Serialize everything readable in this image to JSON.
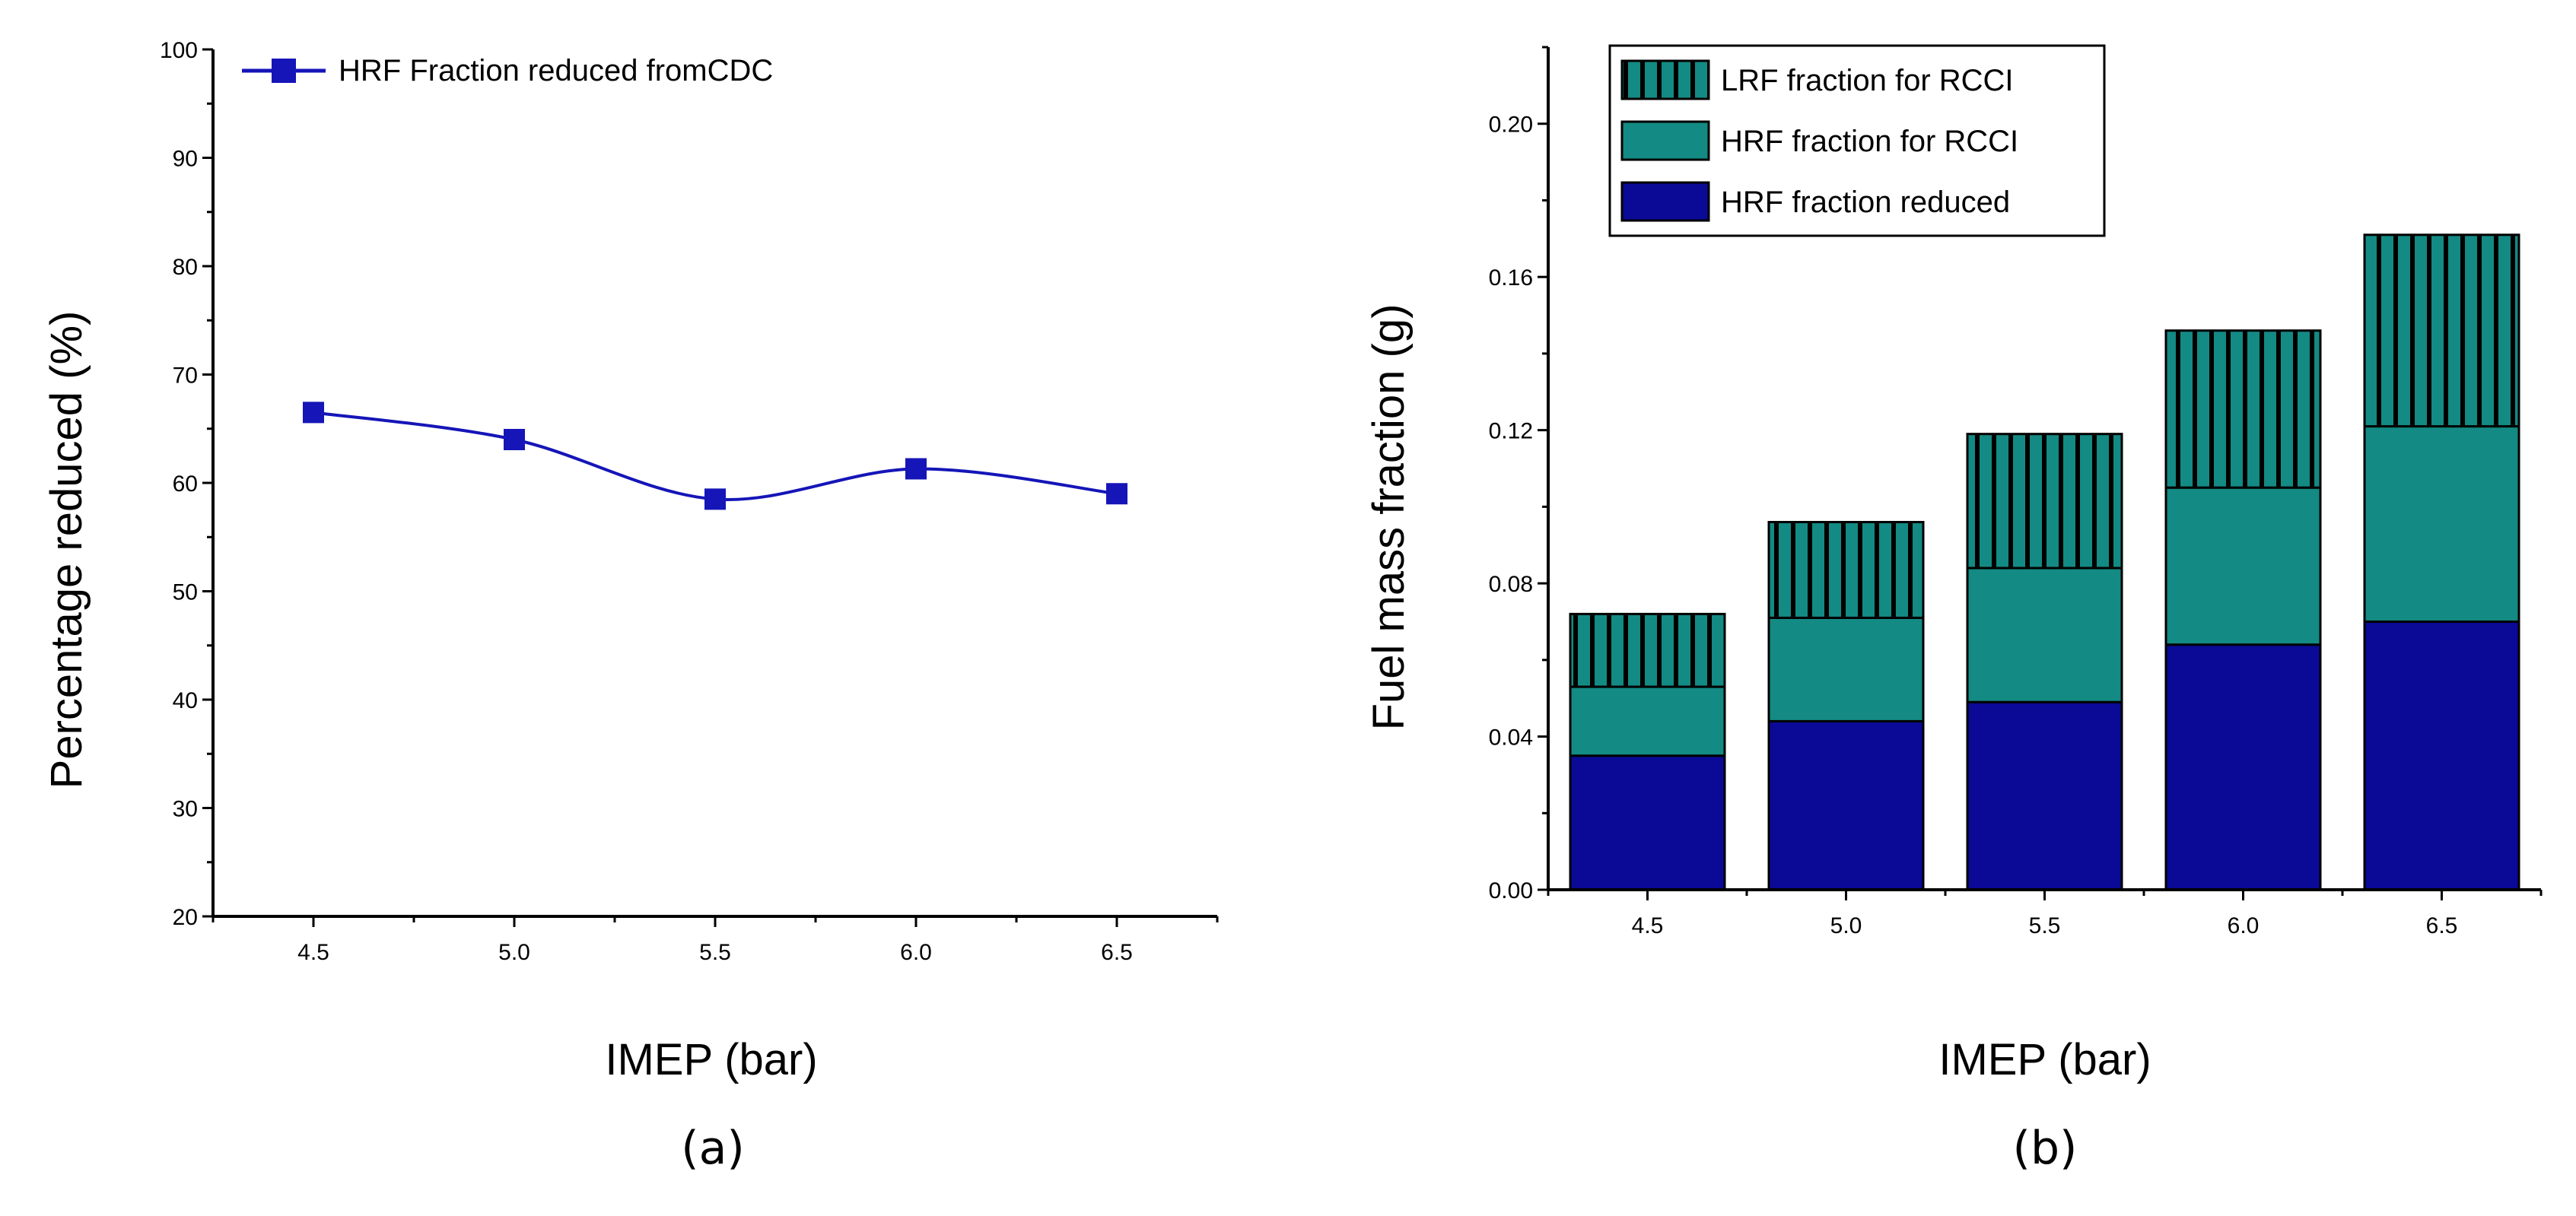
{
  "chart_data": [
    {
      "type": "line",
      "panel_label": "(a)",
      "xlabel": "IMEP (bar)",
      "ylabel": "Percentage reduced (%)",
      "x": [
        4.5,
        5.0,
        5.5,
        6.0,
        6.5
      ],
      "x_tick_labels": [
        "4.5",
        "5.0",
        "5.5",
        "6.0",
        "6.5"
      ],
      "y_ticks": [
        20,
        30,
        40,
        50,
        60,
        70,
        80,
        90,
        100
      ],
      "ylim": [
        20,
        100
      ],
      "xlim": [
        4.25,
        6.75
      ],
      "series": [
        {
          "name": "HRF Fraction reduced fromCDC",
          "values": [
            66.5,
            64,
            58.5,
            61.3,
            59
          ],
          "color": "#1515b8",
          "marker": "square"
        }
      ],
      "legend_position": "top-left",
      "grid": false
    },
    {
      "type": "bar",
      "stacked": true,
      "panel_label": "(b)",
      "xlabel": "IMEP (bar)",
      "ylabel": "Fuel mass fraction (g)",
      "categories": [
        "4.5",
        "5.0",
        "5.5",
        "6.0",
        "6.5"
      ],
      "y_ticks": [
        0.0,
        0.04,
        0.08,
        0.12,
        0.16,
        0.2
      ],
      "y_tick_labels": [
        "0.00",
        "0.04",
        "0.08",
        "0.12",
        "0.16",
        "0.20"
      ],
      "ylim": [
        0,
        0.22
      ],
      "series": [
        {
          "name": "HRF fraction reduced",
          "values": [
            0.035,
            0.044,
            0.049,
            0.064,
            0.07
          ],
          "color": "#0a0a96"
        },
        {
          "name": "HRF fraction for RCCI",
          "values": [
            0.018,
            0.027,
            0.035,
            0.041,
            0.051
          ],
          "color": "#138a83"
        },
        {
          "name": "LRF fraction for RCCI",
          "values": [
            0.019,
            0.025,
            0.035,
            0.041,
            0.05
          ],
          "color": "#138a83",
          "pattern": "vertical-lines"
        }
      ],
      "legend_order": [
        "LRF fraction for RCCI",
        "HRF fraction for RCCI",
        "HRF fraction reduced"
      ],
      "legend_position": "top-left",
      "grid": false
    }
  ]
}
